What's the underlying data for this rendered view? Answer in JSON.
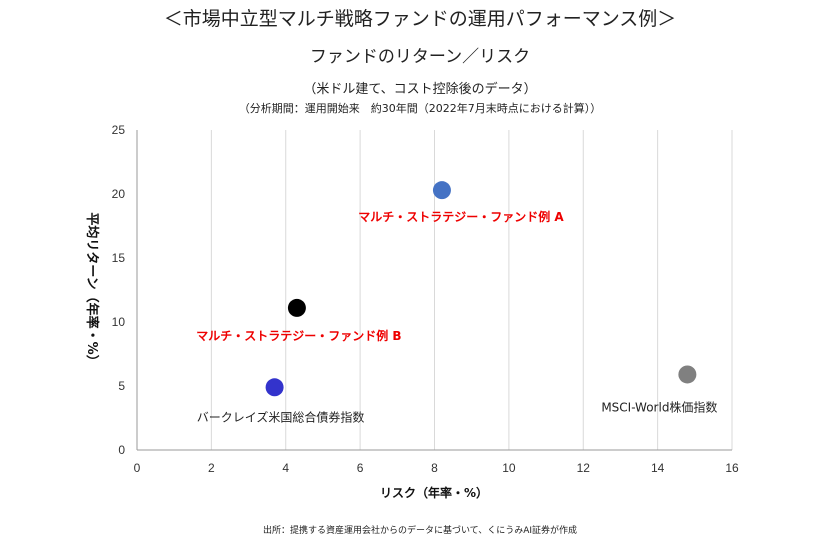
{
  "header": {
    "title": "＜市場中立型マルチ戦略ファンドの運用パフォーマンス例＞",
    "subtitle": "ファンドのリターン／リスク",
    "note": "（米ドル建て、コスト控除後のデータ）",
    "period": "（分析期間：運用開始来　約30年間（2022年7月末時点における計算））"
  },
  "footer": {
    "source": "出所：提携する資産運用会社からのデータに基づいて、くにうみAI証券が作成"
  },
  "chart_data": {
    "type": "scatter",
    "title": "ファンドのリターン／リスク",
    "xlabel": "リスク（年率・%）",
    "ylabel": "平均リターン（年率・%）",
    "xlim": [
      0,
      16
    ],
    "ylim": [
      0,
      25
    ],
    "xticks": [
      0,
      2,
      4,
      6,
      8,
      10,
      12,
      14,
      16
    ],
    "yticks": [
      0,
      5,
      10,
      15,
      20,
      25
    ],
    "grid": "vertical",
    "points": [
      {
        "name": "マルチ・ストラテジー・ファンド例 A",
        "x": 8.2,
        "y": 20.3,
        "color": "#4472c4",
        "label_color": "#ee0000",
        "label_pos": "below"
      },
      {
        "name": "マルチ・ストラテジー・ファンド例 B",
        "x": 4.3,
        "y": 11.1,
        "color": "#000000",
        "label_color": "#ee0000",
        "label_pos": "below"
      },
      {
        "name": "バークレイズ米国総合債券指数",
        "x": 3.7,
        "y": 4.9,
        "color": "#3333cc",
        "label_color": "#222222",
        "label_pos": "below"
      },
      {
        "name": "MSCI-World株価指数",
        "x": 14.8,
        "y": 5.9,
        "color": "#808080",
        "label_color": "#222222",
        "label_pos": "below-left"
      }
    ]
  }
}
